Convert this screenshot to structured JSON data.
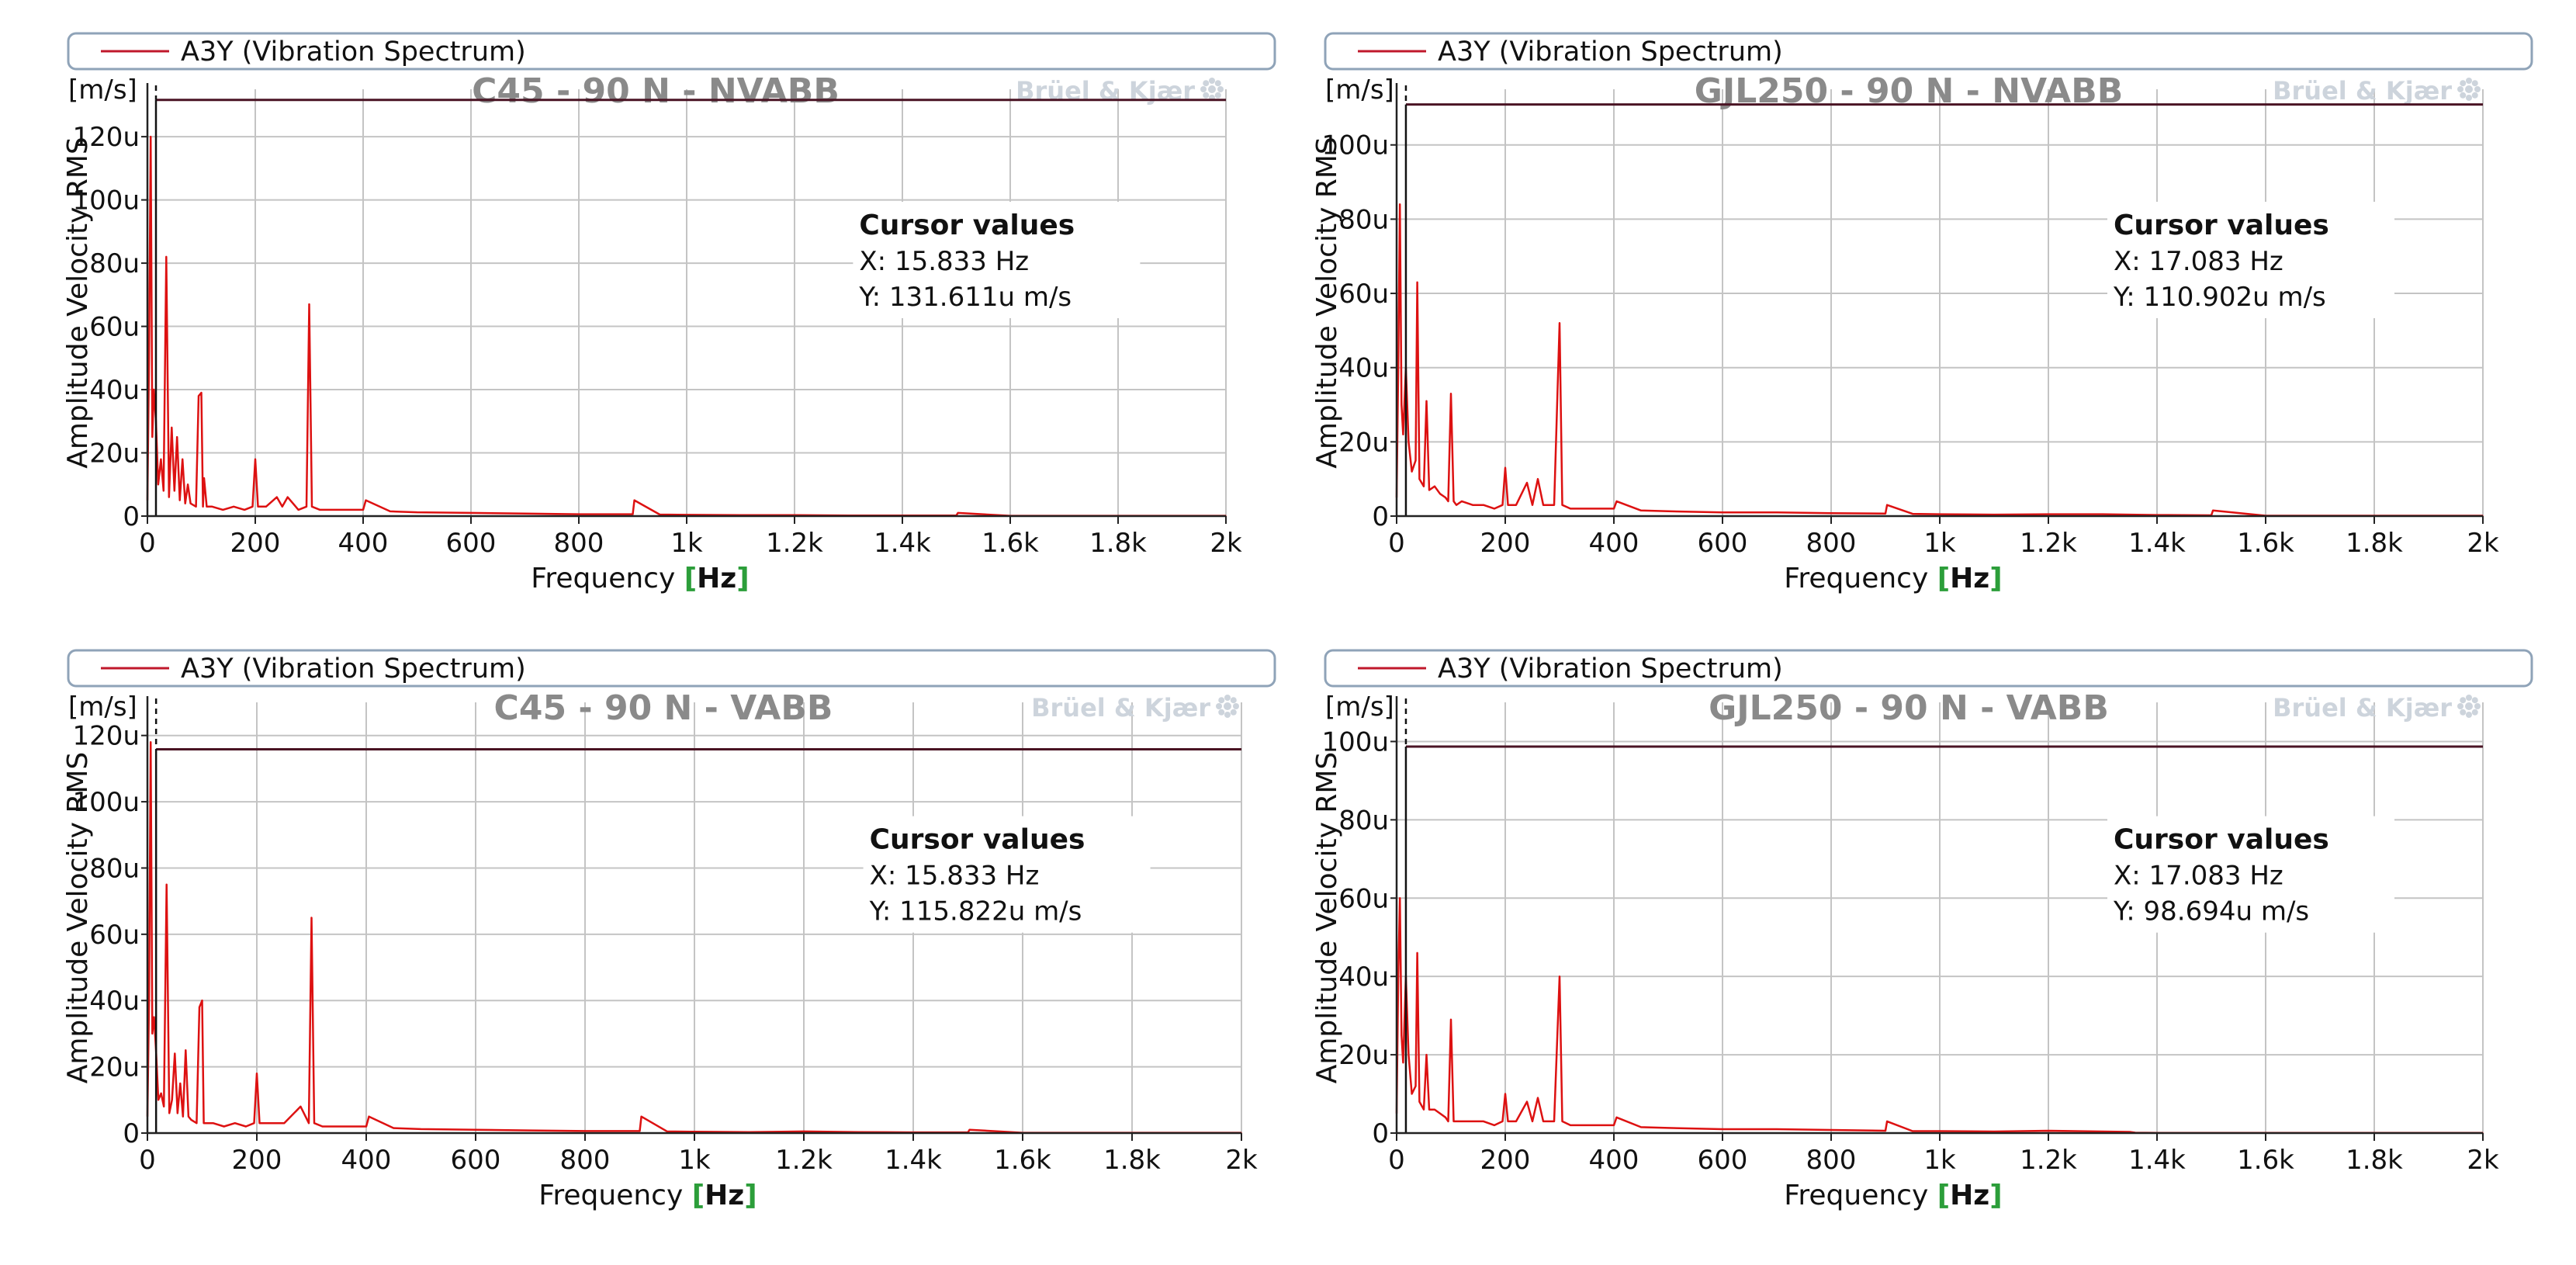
{
  "colors": {
    "signal": "#dd1111",
    "cursor_line": "#4a1424",
    "grid": "#c4c4c4",
    "title": "#8a8a8a",
    "brand": "#cdd4dc"
  },
  "chart_data": [
    {
      "type": "line",
      "legend": "A3Y (Vibration Spectrum)",
      "title": "C45 - 90 N - NVABB",
      "brand": "Brüel & Kjær",
      "unit": "[m/s]",
      "ylabel": "Amplitude  Velocity RMS",
      "xlabel": "Frequency ",
      "xlabel_unit_open": "[",
      "xlabel_unit": "Hz",
      "xlabel_unit_close": "]",
      "xlim": [
        0,
        2000
      ],
      "ylim": [
        0,
        135
      ],
      "x_ticks": [
        0,
        200,
        400,
        600,
        800,
        1000,
        1200,
        1400,
        1600,
        1800,
        2000
      ],
      "x_tick_labels": [
        "0",
        "200",
        "400",
        "600",
        "800",
        "1k",
        "1.2k",
        "1.4k",
        "1.6k",
        "1.8k",
        "2k"
      ],
      "y_ticks": [
        0,
        20,
        40,
        60,
        80,
        100,
        120
      ],
      "y_tick_labels": [
        "0",
        "20u",
        "40u",
        "60u",
        "80u",
        "100u",
        "120u"
      ],
      "cursor": {
        "title": "Cursor values",
        "x_text": "X: 15.833 Hz",
        "y_text": "Y: 131.611u m/s",
        "x": 15.833,
        "y": 131.611
      },
      "series": [
        {
          "name": "A3Y (Vibration Spectrum)",
          "x": [
            0,
            3,
            6,
            9,
            12,
            15.8,
            20,
            25,
            30,
            35,
            40,
            45,
            50,
            55,
            60,
            65,
            70,
            75,
            80,
            90,
            95,
            100,
            103,
            105,
            110,
            120,
            140,
            160,
            180,
            195,
            200,
            205,
            220,
            240,
            250,
            260,
            280,
            295,
            300,
            305,
            320,
            350,
            400,
            405,
            450,
            500,
            600,
            700,
            800,
            900,
            903,
            950,
            1000,
            1100,
            1200,
            1300,
            1400,
            1500,
            1503,
            1600,
            1800,
            2000
          ],
          "values": [
            5,
            50,
            120,
            25,
            40,
            30,
            10,
            18,
            8,
            82,
            6,
            28,
            8,
            25,
            5,
            18,
            4,
            10,
            4,
            3,
            38,
            39,
            3,
            12,
            3,
            3,
            2,
            3,
            2,
            3,
            18,
            3,
            3,
            6,
            3,
            6,
            2,
            3,
            67,
            3,
            2,
            2,
            2,
            5,
            1.5,
            1.2,
            1,
            0.8,
            0.6,
            0.6,
            5,
            0.5,
            0.4,
            0.3,
            0.3,
            0.2,
            0.2,
            0.2,
            1,
            0.1,
            0.1,
            0.1
          ]
        }
      ]
    },
    {
      "type": "line",
      "legend": "A3Y (Vibration Spectrum)",
      "title": "GJL250 - 90 N - NVABB",
      "brand": "Brüel & Kjær",
      "unit": "[m/s]",
      "ylabel": "Amplitude  Velocity RMS",
      "xlabel": "Frequency ",
      "xlabel_unit_open": "[",
      "xlabel_unit": "Hz",
      "xlabel_unit_close": "]",
      "xlim": [
        0,
        2000
      ],
      "ylim": [
        0,
        115
      ],
      "x_ticks": [
        0,
        200,
        400,
        600,
        800,
        1000,
        1200,
        1400,
        1600,
        1800,
        2000
      ],
      "x_tick_labels": [
        "0",
        "200",
        "400",
        "600",
        "800",
        "1k",
        "1.2k",
        "1.4k",
        "1.6k",
        "1.8k",
        "2k"
      ],
      "y_ticks": [
        0,
        20,
        40,
        60,
        80,
        100
      ],
      "y_tick_labels": [
        "0",
        "20u",
        "40u",
        "60u",
        "80u",
        "100u"
      ],
      "cursor": {
        "title": "Cursor values",
        "x_text": "X: 17.083 Hz",
        "y_text": "Y: 110.902u m/s",
        "x": 17.083,
        "y": 110.902
      },
      "series": [
        {
          "name": "A3Y (Vibration Spectrum)",
          "x": [
            0,
            3,
            6,
            9,
            12,
            17,
            22,
            28,
            35,
            38,
            42,
            50,
            55,
            60,
            70,
            80,
            90,
            95,
            100,
            105,
            110,
            120,
            140,
            160,
            180,
            195,
            200,
            205,
            220,
            240,
            250,
            260,
            270,
            290,
            300,
            305,
            320,
            350,
            400,
            405,
            450,
            500,
            600,
            700,
            800,
            900,
            903,
            950,
            1000,
            1100,
            1200,
            1300,
            1400,
            1500,
            1503,
            1600,
            1800,
            2000
          ],
          "values": [
            5,
            40,
            84,
            30,
            22,
            40,
            20,
            12,
            15,
            63,
            10,
            8,
            31,
            7,
            8,
            6,
            5,
            4,
            33,
            4,
            3,
            4,
            3,
            3,
            2,
            3,
            13,
            3,
            3,
            9,
            3,
            10,
            3,
            3,
            52,
            3,
            2,
            2,
            2,
            4,
            1.5,
            1.3,
            1,
            1,
            0.8,
            0.7,
            3,
            0.6,
            0.5,
            0.4,
            0.5,
            0.5,
            0.3,
            0.2,
            1.5,
            0.1,
            0.1,
            0.1
          ]
        }
      ]
    },
    {
      "type": "line",
      "legend": "A3Y (Vibration Spectrum)",
      "title": "C45 - 90 N - VABB",
      "brand": "Brüel & Kjær",
      "unit": "[m/s]",
      "ylabel": "Amplitude  Velocity RMS",
      "xlabel": "Frequency ",
      "xlabel_unit_open": "[",
      "xlabel_unit": "Hz",
      "xlabel_unit_close": "]",
      "xlim": [
        0,
        2000
      ],
      "ylim": [
        0,
        130
      ],
      "x_ticks": [
        0,
        200,
        400,
        600,
        800,
        1000,
        1200,
        1400,
        1600,
        1800,
        2000
      ],
      "x_tick_labels": [
        "0",
        "200",
        "400",
        "600",
        "800",
        "1k",
        "1.2k",
        "1.4k",
        "1.6k",
        "1.8k",
        "2k"
      ],
      "y_ticks": [
        0,
        20,
        40,
        60,
        80,
        100,
        120
      ],
      "y_tick_labels": [
        "0",
        "20u",
        "40u",
        "60u",
        "80u",
        "100u",
        "120u"
      ],
      "cursor": {
        "title": "Cursor values",
        "x_text": "X: 15.833 Hz",
        "y_text": "Y: 115.822u m/s",
        "x": 15.833,
        "y": 115.822
      },
      "series": [
        {
          "name": "A3Y (Vibration Spectrum)",
          "x": [
            0,
            3,
            6,
            9,
            12,
            15.8,
            20,
            25,
            30,
            35,
            40,
            45,
            50,
            55,
            60,
            65,
            70,
            75,
            80,
            90,
            95,
            100,
            103,
            110,
            120,
            140,
            160,
            180,
            195,
            200,
            205,
            220,
            250,
            280,
            295,
            300,
            305,
            320,
            350,
            400,
            405,
            450,
            500,
            600,
            700,
            800,
            900,
            903,
            950,
            1000,
            1100,
            1200,
            1300,
            1400,
            1500,
            1503,
            1600,
            1800,
            2000
          ],
          "values": [
            5,
            40,
            118,
            30,
            35,
            25,
            10,
            12,
            8,
            75,
            6,
            10,
            24,
            6,
            15,
            5,
            25,
            5,
            4,
            3,
            38,
            40,
            3,
            3,
            3,
            2,
            3,
            2,
            3,
            18,
            3,
            3,
            3,
            8,
            3,
            65,
            3,
            2,
            2,
            2,
            5,
            1.5,
            1.2,
            1,
            0.8,
            0.6,
            0.6,
            5,
            0.5,
            0.4,
            0.3,
            0.5,
            0.3,
            0.2,
            0.2,
            1,
            0.1,
            0.1,
            0.1
          ]
        }
      ]
    },
    {
      "type": "line",
      "legend": "A3Y (Vibration Spectrum)",
      "title": "GJL250 - 90 N - VABB",
      "brand": "Brüel & Kjær",
      "unit": "[m/s]",
      "ylabel": "Amplitude  Velocity RMS",
      "xlabel": "Frequency ",
      "xlabel_unit_open": "[",
      "xlabel_unit": "Hz",
      "xlabel_unit_close": "]",
      "xlim": [
        0,
        2000
      ],
      "ylim": [
        0,
        110
      ],
      "x_ticks": [
        0,
        200,
        400,
        600,
        800,
        1000,
        1200,
        1400,
        1600,
        1800,
        2000
      ],
      "x_tick_labels": [
        "0",
        "200",
        "400",
        "600",
        "800",
        "1k",
        "1.2k",
        "1.4k",
        "1.6k",
        "1.8k",
        "2k"
      ],
      "y_ticks": [
        0,
        20,
        40,
        60,
        80,
        100
      ],
      "y_tick_labels": [
        "0",
        "20u",
        "40u",
        "60u",
        "80u",
        "100u"
      ],
      "cursor": {
        "title": "Cursor values",
        "x_text": "X: 17.083 Hz",
        "y_text": "Y: 98.694u m/s",
        "x": 17.083,
        "y": 98.694
      },
      "series": [
        {
          "name": "A3Y (Vibration Spectrum)",
          "x": [
            0,
            3,
            6,
            9,
            12,
            17,
            22,
            28,
            35,
            38,
            42,
            50,
            55,
            60,
            70,
            80,
            90,
            95,
            100,
            105,
            110,
            120,
            140,
            160,
            180,
            195,
            200,
            205,
            220,
            240,
            250,
            260,
            270,
            290,
            300,
            305,
            320,
            350,
            400,
            405,
            450,
            500,
            600,
            700,
            800,
            900,
            903,
            950,
            1000,
            1100,
            1200,
            1300,
            1350,
            1360,
            1400,
            1600,
            1800,
            2000
          ],
          "values": [
            5,
            40,
            60,
            25,
            18,
            40,
            20,
            10,
            12,
            46,
            8,
            6,
            20,
            6,
            6,
            5,
            4,
            3,
            29,
            3,
            3,
            3,
            3,
            3,
            2,
            3,
            10,
            3,
            3,
            8,
            3,
            9,
            3,
            3,
            40,
            3,
            2,
            2,
            2,
            4,
            1.5,
            1.3,
            1,
            1,
            0.8,
            0.6,
            3,
            0.5,
            0.5,
            0.4,
            0.6,
            0.4,
            0.3,
            0.1,
            0.05,
            0.05,
            0.05,
            0.05
          ]
        }
      ]
    }
  ]
}
